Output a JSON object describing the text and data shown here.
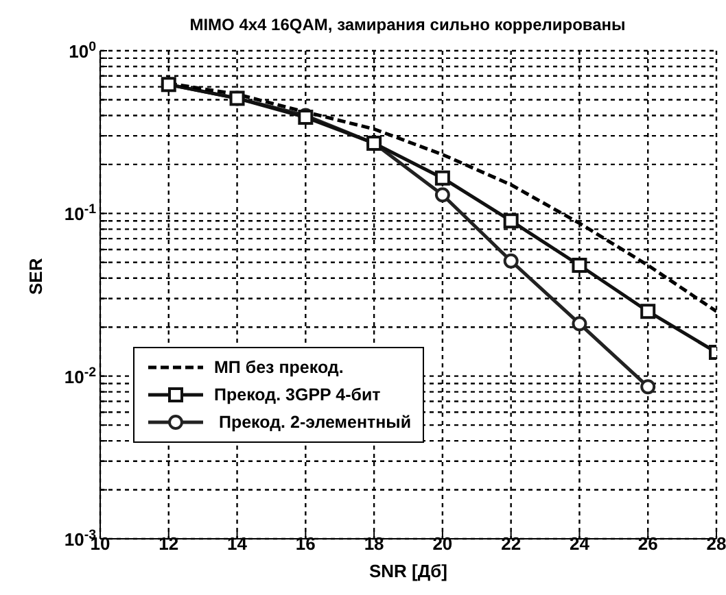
{
  "chart_data": {
    "type": "line",
    "title": "MIMO 4x4 16QAM, замирания сильно коррелированы",
    "xlabel": "SNR [Дб]",
    "ylabel": "SER",
    "x": [
      12,
      14,
      16,
      18,
      20,
      22,
      24,
      26,
      28
    ],
    "series": [
      {
        "name": "МП без прекод.",
        "color": "#000000",
        "line_style": "dashed",
        "marker": "none",
        "values": [
          0.63,
          0.54,
          0.42,
          0.33,
          0.23,
          0.15,
          0.087,
          0.048,
          0.025
        ]
      },
      {
        "name": "Прекод. 3GPP 4-бит",
        "color": "#111111",
        "line_style": "solid",
        "marker": "square",
        "values": [
          0.62,
          0.51,
          0.39,
          0.27,
          0.165,
          0.09,
          0.048,
          0.025,
          0.014
        ]
      },
      {
        "name": " Прекод. 2-элементный",
        "color": "#222222",
        "line_style": "solid",
        "marker": "circle",
        "values": [
          0.62,
          0.51,
          0.4,
          0.27,
          0.13,
          0.051,
          0.021,
          0.0086,
          null
        ]
      }
    ],
    "log": "y",
    "xlim": [
      10,
      28
    ],
    "xticks": [
      10,
      12,
      14,
      16,
      18,
      20,
      22,
      24,
      26,
      28
    ],
    "ylim": [
      0.001,
      1
    ],
    "yticks": [
      {
        "value": 0.001,
        "label": "10$^{-3}$"
      },
      {
        "value": 0.002,
        "label": null
      },
      {
        "value": 0.003,
        "label": null
      },
      {
        "value": 0.004,
        "label": null
      },
      {
        "value": 0.005,
        "label": null
      },
      {
        "value": 0.006,
        "label": null
      },
      {
        "value": 0.007,
        "label": null
      },
      {
        "value": 0.008,
        "label": null
      },
      {
        "value": 0.009,
        "label": null
      },
      {
        "value": 0.01,
        "label": "10$^{-2}$"
      },
      {
        "value": 0.02,
        "label": null
      },
      {
        "value": 0.03,
        "label": null
      },
      {
        "value": 0.04,
        "label": null
      },
      {
        "value": 0.05,
        "label": null
      },
      {
        "value": 0.06,
        "label": null
      },
      {
        "value": 0.07,
        "label": null
      },
      {
        "value": 0.08,
        "label": null
      },
      {
        "value": 0.09,
        "label": null
      },
      {
        "value": 0.1,
        "label": "10$^{-1}$"
      },
      {
        "value": 0.2,
        "label": null
      },
      {
        "value": 0.3,
        "label": null
      },
      {
        "value": 0.4,
        "label": null
      },
      {
        "value": 0.5,
        "label": null
      },
      {
        "value": 0.6,
        "label": null
      },
      {
        "value": 0.7,
        "label": null
      },
      {
        "value": 0.8,
        "label": null
      },
      {
        "value": 0.9,
        "label": null
      },
      {
        "value": 1,
        "label": "10$^{0}$"
      }
    ],
    "grid": true,
    "legend": "bottom left"
  }
}
